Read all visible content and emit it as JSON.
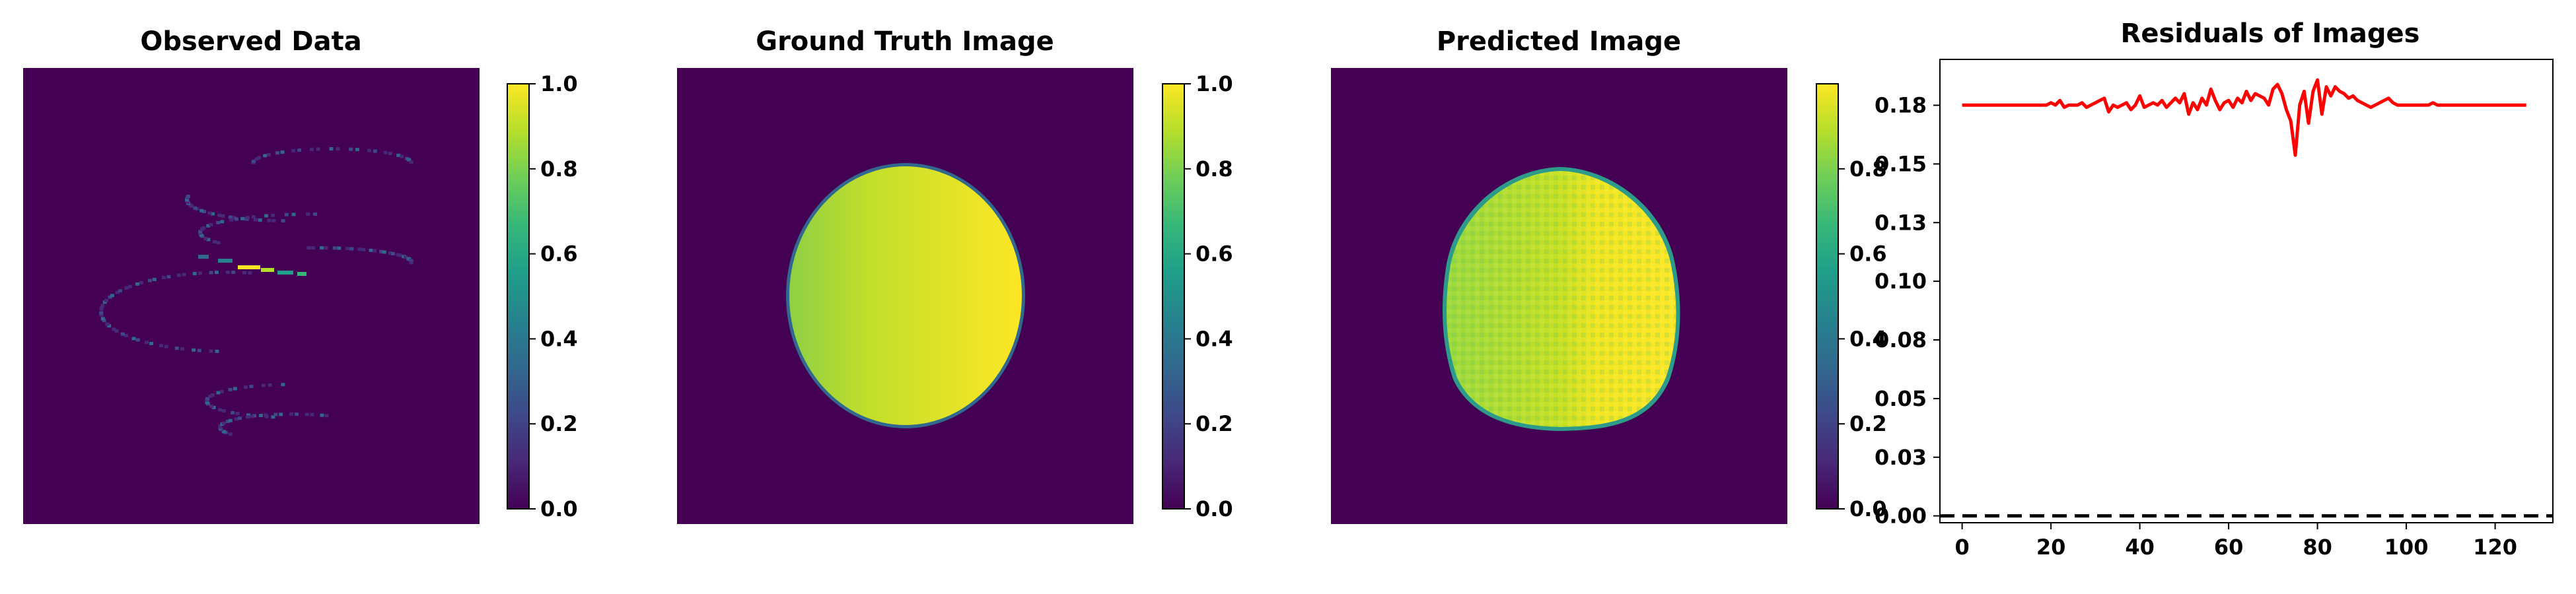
{
  "colors": {
    "background": "#440154",
    "viridis": [
      "#440154",
      "#482878",
      "#3e4989",
      "#31688e",
      "#26828e",
      "#1f9e89",
      "#35b779",
      "#6ece58",
      "#b5de2b",
      "#fde725"
    ],
    "residual_line": "#ff0000",
    "zero_line": "#000000"
  },
  "chart_data": [
    {
      "type": "heatmap",
      "title": "Observed Data",
      "description_shape": "sparse helical point traces",
      "colorbar": {
        "min": 0.0,
        "max": 1.0,
        "ticks": [
          "0.0",
          "0.2",
          "0.4",
          "0.6",
          "0.8",
          "1.0"
        ]
      }
    },
    {
      "type": "heatmap",
      "title": "Ground Truth Image",
      "description_shape": "filled disc, intensity rising left to right",
      "colorbar": {
        "min": 0.0,
        "max": 1.0,
        "ticks": [
          "0.0",
          "0.2",
          "0.4",
          "0.6",
          "0.8",
          "1.0"
        ]
      }
    },
    {
      "type": "heatmap",
      "title": "Predicted Image",
      "description_shape": "noisy filled disc",
      "colorbar": {
        "min": 0.0,
        "max": 1.0,
        "ticks": [
          "0.0",
          "0.2",
          "0.4",
          "0.6",
          "0.8"
        ]
      }
    },
    {
      "type": "line",
      "title": "Residuals of Images",
      "xlim": [
        -5,
        133
      ],
      "ylim": [
        -0.003,
        0.2
      ],
      "xticks": [
        "0",
        "20",
        "40",
        "60",
        "80",
        "100",
        "120"
      ],
      "yticks": [
        "0.00",
        "0.03",
        "0.05",
        "0.08",
        "0.10",
        "0.13",
        "0.15",
        "0.18"
      ],
      "ytick_values": [
        0.0,
        0.0257,
        0.0514,
        0.0771,
        0.1028,
        0.1285,
        0.1542,
        0.1799
      ],
      "zero_line": {
        "y": 0.0,
        "style": "dashed"
      },
      "series": [
        {
          "x_start": 0,
          "values": [
            0.18,
            0.18,
            0.18,
            0.18,
            0.18,
            0.18,
            0.18,
            0.18,
            0.18,
            0.18,
            0.18,
            0.18,
            0.18,
            0.18,
            0.18,
            0.18,
            0.18,
            0.18,
            0.18,
            0.18,
            0.181,
            0.18,
            0.182,
            0.179,
            0.18,
            0.18,
            0.18,
            0.181,
            0.179,
            0.18,
            0.181,
            0.182,
            0.183,
            0.177,
            0.18,
            0.179,
            0.18,
            0.181,
            0.178,
            0.18,
            0.184,
            0.179,
            0.18,
            0.181,
            0.18,
            0.182,
            0.179,
            0.181,
            0.183,
            0.181,
            0.185,
            0.176,
            0.181,
            0.178,
            0.183,
            0.18,
            0.187,
            0.182,
            0.178,
            0.181,
            0.182,
            0.179,
            0.183,
            0.181,
            0.186,
            0.182,
            0.185,
            0.184,
            0.183,
            0.18,
            0.187,
            0.189,
            0.185,
            0.178,
            0.173,
            0.158,
            0.18,
            0.186,
            0.172,
            0.186,
            0.191,
            0.176,
            0.188,
            0.184,
            0.188,
            0.186,
            0.185,
            0.183,
            0.184,
            0.182,
            0.181,
            0.18,
            0.179,
            0.18,
            0.181,
            0.182,
            0.183,
            0.181,
            0.18,
            0.18,
            0.18,
            0.18,
            0.18,
            0.18,
            0.18,
            0.18,
            0.181,
            0.18,
            0.18,
            0.18,
            0.18,
            0.18,
            0.18,
            0.18,
            0.18,
            0.18,
            0.18,
            0.18,
            0.18,
            0.18,
            0.18,
            0.18,
            0.18,
            0.18,
            0.18,
            0.18,
            0.18,
            0.18
          ]
        }
      ]
    }
  ]
}
